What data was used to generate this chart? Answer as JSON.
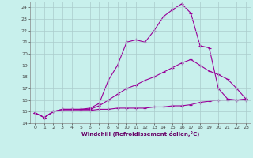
{
  "xlabel": "Windchill (Refroidissement éolien,°C)",
  "background_color": "#c8f0ec",
  "grid_color": "#aacccc",
  "line_color": "#990099",
  "xlim": [
    -0.5,
    23.5
  ],
  "ylim": [
    14,
    24.5
  ],
  "yticks": [
    14,
    15,
    16,
    17,
    18,
    19,
    20,
    21,
    22,
    23,
    24
  ],
  "xticks": [
    0,
    1,
    2,
    3,
    4,
    5,
    6,
    7,
    8,
    9,
    10,
    11,
    12,
    13,
    14,
    15,
    16,
    17,
    18,
    19,
    20,
    21,
    22,
    23
  ],
  "line1_x": [
    0,
    1,
    2,
    3,
    4,
    5,
    6,
    7,
    8,
    9,
    10,
    11,
    12,
    13,
    14,
    15,
    16,
    17,
    18,
    19,
    20,
    21,
    22,
    23
  ],
  "line1_y": [
    14.9,
    14.5,
    15.0,
    15.1,
    15.1,
    15.1,
    15.1,
    15.2,
    15.2,
    15.3,
    15.3,
    15.3,
    15.3,
    15.4,
    15.4,
    15.5,
    15.5,
    15.6,
    15.8,
    15.9,
    16.0,
    16.0,
    16.0,
    16.1
  ],
  "line2_x": [
    0,
    1,
    2,
    3,
    4,
    5,
    6,
    7,
    8,
    9,
    10,
    11,
    12,
    13,
    14,
    15,
    16,
    17,
    18,
    19,
    20,
    21,
    22,
    23
  ],
  "line2_y": [
    14.9,
    14.5,
    15.0,
    15.2,
    15.2,
    15.2,
    15.2,
    15.5,
    16.0,
    16.5,
    17.0,
    17.3,
    17.7,
    18.0,
    18.4,
    18.8,
    19.2,
    19.5,
    19.0,
    18.5,
    18.2,
    17.8,
    17.0,
    16.1
  ],
  "line3_x": [
    0,
    1,
    2,
    3,
    4,
    5,
    6,
    7,
    8,
    9,
    10,
    11,
    12,
    13,
    14,
    15,
    16,
    17,
    18,
    19,
    20,
    21,
    22,
    23
  ],
  "line3_y": [
    14.9,
    14.5,
    15.0,
    15.2,
    15.2,
    15.2,
    15.3,
    15.7,
    17.7,
    19.0,
    21.0,
    21.2,
    21.0,
    22.0,
    23.2,
    23.8,
    24.3,
    23.5,
    20.7,
    20.5,
    17.0,
    16.1,
    16.0,
    16.0
  ]
}
